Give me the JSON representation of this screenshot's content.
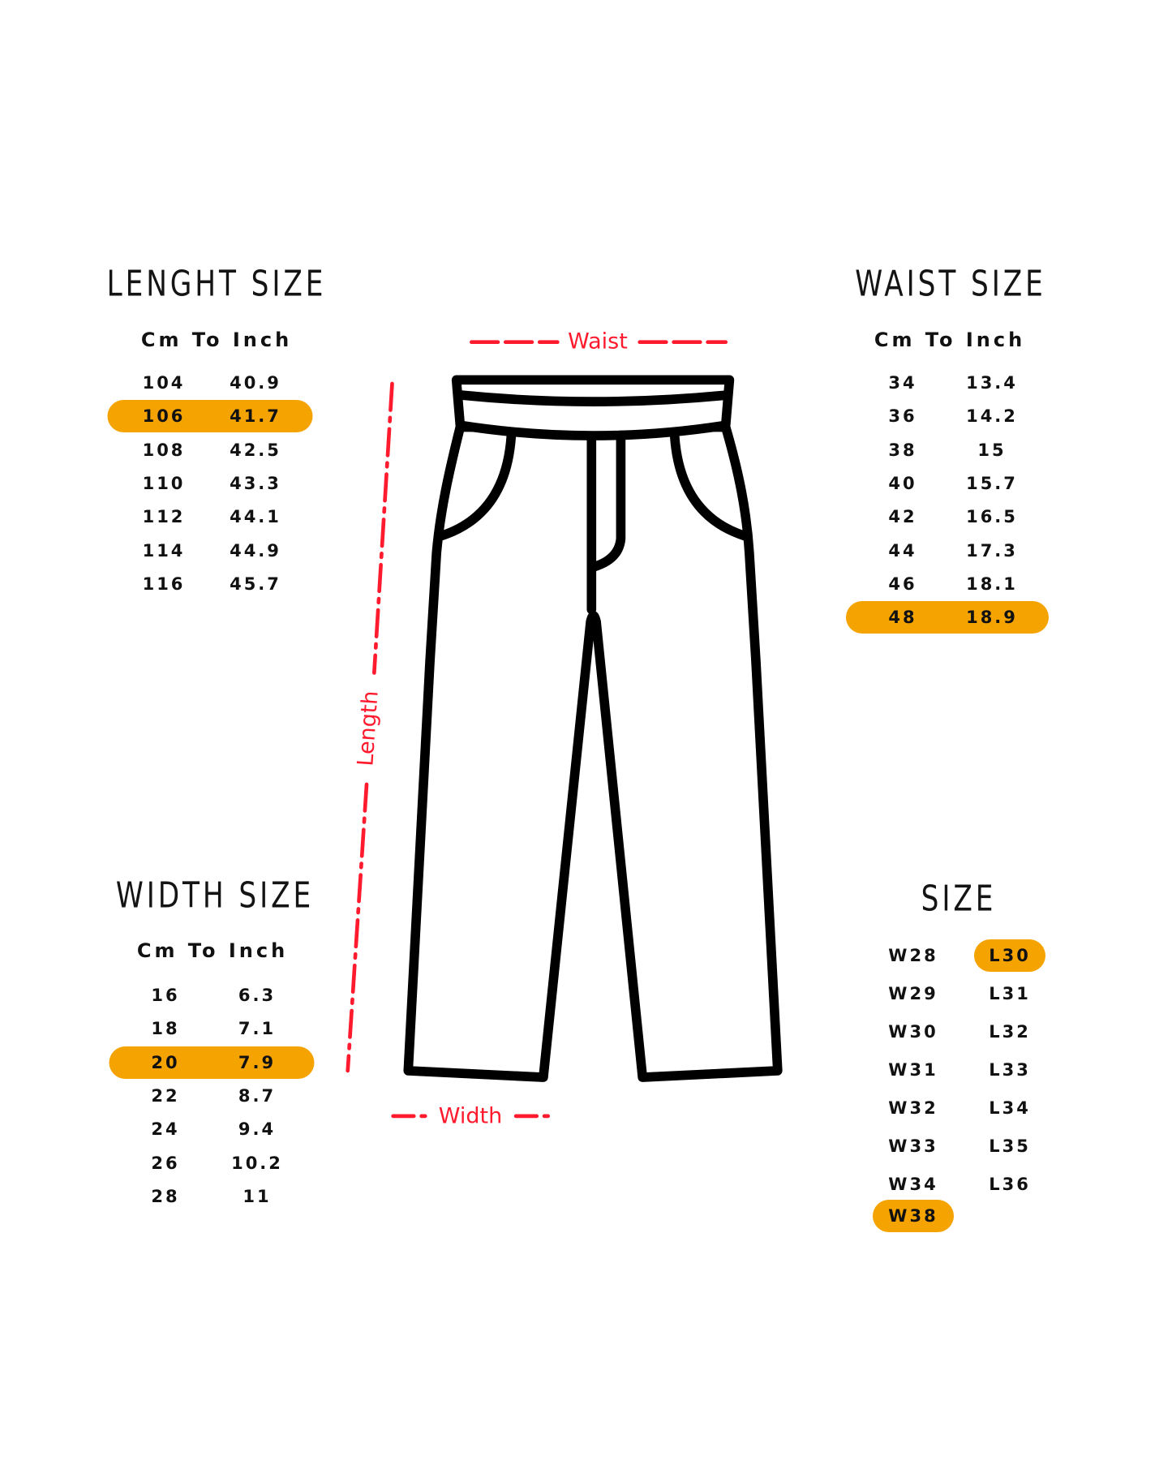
{
  "colors": {
    "highlight": "#F5A300",
    "measure": "#ff1a2e",
    "outline": "#000000"
  },
  "length_table": {
    "title": "LENGHT SIZE",
    "subtitle": "Cm To Inch",
    "highlighted_row": 1,
    "rows": [
      [
        "104",
        "40.9"
      ],
      [
        "106",
        "41.7"
      ],
      [
        "108",
        "42.5"
      ],
      [
        "110",
        "43.3"
      ],
      [
        "112",
        "44.1"
      ],
      [
        "114",
        "44.9"
      ],
      [
        "116",
        "45.7"
      ]
    ]
  },
  "waist_table": {
    "title": "WAIST SIZE",
    "subtitle": "Cm To Inch",
    "highlighted_row": 7,
    "rows": [
      [
        "34",
        "13.4"
      ],
      [
        "36",
        "14.2"
      ],
      [
        "38",
        "15"
      ],
      [
        "40",
        "15.7"
      ],
      [
        "42",
        "16.5"
      ],
      [
        "44",
        "17.3"
      ],
      [
        "46",
        "18.1"
      ],
      [
        "48",
        "18.9"
      ]
    ]
  },
  "width_table": {
    "title": "WIDTH SIZE",
    "subtitle": "Cm To Inch",
    "highlighted_row": 2,
    "rows": [
      [
        "16",
        "6.3"
      ],
      [
        "18",
        "7.1"
      ],
      [
        "20",
        "7.9"
      ],
      [
        "22",
        "8.7"
      ],
      [
        "24",
        "9.4"
      ],
      [
        "26",
        "10.2"
      ],
      [
        "28",
        "11"
      ]
    ]
  },
  "size_table": {
    "title": "SIZE",
    "waist": [
      "W28",
      "W29",
      "W30",
      "W31",
      "W32",
      "W33",
      "W34",
      "W38"
    ],
    "length": [
      "L30",
      "L31",
      "L32",
      "L33",
      "L34",
      "L35",
      "L36"
    ],
    "highlighted": [
      "W38",
      "L30"
    ]
  },
  "diagram": {
    "waist_label": "Waist",
    "length_label": "Length",
    "width_label": "Width",
    "icon": "pants-icon"
  }
}
